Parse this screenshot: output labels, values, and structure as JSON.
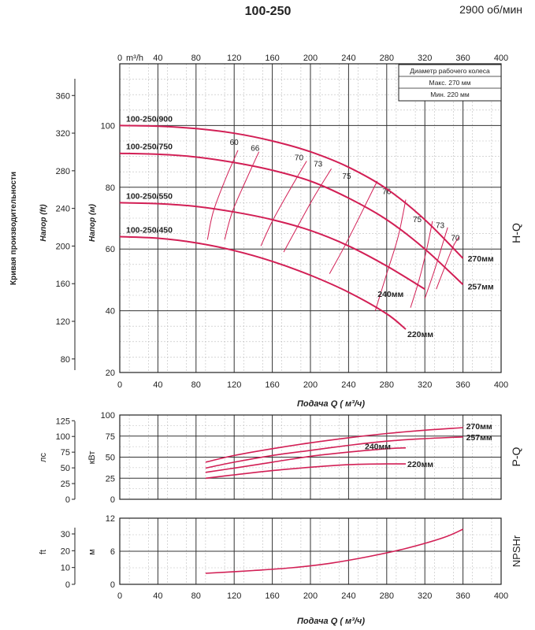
{
  "header": {
    "model": "100-250",
    "speed": "2900 об/мин"
  },
  "side_caption": "Кривая производительности",
  "colors": {
    "curve": "#d21f55",
    "grid": "#333333",
    "minor_grid": "#bdbdbd"
  },
  "chart_data": [
    {
      "type": "line",
      "panel": "H-Q",
      "panel_label": "H-Q",
      "xlabel": "Подача Q ( м³/ч)",
      "top_axis_label": "m³/h",
      "ylabel_left": "Напор (ft)",
      "ylabel_right": "Напор (м)",
      "xlim": [
        0,
        400
      ],
      "ylim": [
        20,
        120
      ],
      "x_ticks": [
        0,
        40,
        80,
        120,
        160,
        200,
        240,
        280,
        320,
        360,
        400
      ],
      "y_ticks": [
        20,
        40,
        60,
        80,
        100
      ],
      "ft_ticks": [
        80,
        120,
        160,
        200,
        240,
        280,
        320,
        360
      ],
      "legend_box": {
        "title": "Диаметр рабочего колеса",
        "max_label": "Макс. 270 мм",
        "min_label": "Мин. 220 мм"
      },
      "series": [
        {
          "name": "270мм",
          "model_label": "100-250/900",
          "x": [
            0,
            40,
            80,
            120,
            160,
            200,
            240,
            280,
            320,
            360
          ],
          "y": [
            100,
            99.8,
            99,
            97.5,
            95,
            91.5,
            86.5,
            79.5,
            69.5,
            57
          ]
        },
        {
          "name": "257мм",
          "model_label": "100-250/750",
          "x": [
            0,
            40,
            80,
            120,
            160,
            200,
            240,
            280,
            320,
            360
          ],
          "y": [
            91,
            90.7,
            89.8,
            88,
            85.5,
            82,
            76.5,
            69.5,
            60,
            48.5
          ]
        },
        {
          "name": "240мм",
          "model_label": "100-250/550",
          "x": [
            0,
            40,
            80,
            120,
            160,
            200,
            240,
            280,
            320
          ],
          "y": [
            75,
            74.7,
            73.8,
            72,
            69.5,
            66,
            61,
            54.5,
            47
          ]
        },
        {
          "name": "220мм",
          "model_label": "100-250/450",
          "x": [
            0,
            40,
            80,
            120,
            160,
            200,
            240,
            280,
            300
          ],
          "y": [
            64,
            63.5,
            62,
            59.5,
            56,
            51.5,
            46,
            39,
            34
          ]
        }
      ],
      "efficiency_curves": [
        {
          "label": "60",
          "x": [
            92,
            98,
            110,
            124
          ],
          "y": [
            63,
            72,
            82,
            92
          ]
        },
        {
          "label": "66",
          "x": [
            110,
            118,
            132,
            146
          ],
          "y": [
            63,
            72,
            82,
            91.5
          ]
        },
        {
          "label": "70",
          "x": [
            148,
            160,
            178,
            196
          ],
          "y": [
            61,
            69,
            79,
            88.5
          ]
        },
        {
          "label": "73",
          "x": [
            172,
            186,
            204,
            222
          ],
          "y": [
            59,
            67,
            77,
            86
          ]
        },
        {
          "label": "75",
          "x": [
            220,
            236,
            254,
            270
          ],
          "y": [
            52,
            61,
            72,
            82
          ]
        },
        {
          "label": "76",
          "x": [
            268,
            280,
            292,
            300
          ],
          "y": [
            40,
            52,
            64,
            76
          ]
        },
        {
          "label": "75",
          "x": [
            305,
            314,
            322,
            328
          ],
          "y": [
            41,
            50,
            60,
            69
          ]
        },
        {
          "label": "73",
          "x": [
            320,
            330,
            338,
            344
          ],
          "y": [
            44,
            53,
            61,
            67
          ]
        },
        {
          "label": "70",
          "x": [
            332,
            342,
            350,
            356
          ],
          "y": [
            47,
            55,
            61,
            64
          ]
        }
      ],
      "eff_label_positions": [
        {
          "label": "60",
          "x": 120,
          "y": 93
        },
        {
          "label": "66",
          "x": 142,
          "y": 91
        },
        {
          "label": "70",
          "x": 188,
          "y": 88
        },
        {
          "label": "73",
          "x": 208,
          "y": 86
        },
        {
          "label": "75",
          "x": 238,
          "y": 82
        },
        {
          "label": "76",
          "x": 280,
          "y": 77
        },
        {
          "label": "75",
          "x": 312,
          "y": 68
        },
        {
          "label": "73",
          "x": 336,
          "y": 66
        },
        {
          "label": "70",
          "x": 352,
          "y": 62
        }
      ]
    },
    {
      "type": "line",
      "panel": "P-Q",
      "panel_label": "P-Q",
      "ylabel_left": "лс",
      "ylabel_right": "кВт",
      "xlim": [
        0,
        400
      ],
      "ylim": [
        0,
        100
      ],
      "y_ticks": [
        0,
        25,
        50,
        75,
        100
      ],
      "hp_ticks": [
        0,
        25,
        50,
        75,
        100,
        125
      ],
      "series": [
        {
          "name": "270мм",
          "x": [
            90,
            120,
            160,
            200,
            240,
            280,
            320,
            360
          ],
          "y": [
            44,
            52,
            60,
            67,
            73,
            78,
            82,
            85
          ]
        },
        {
          "name": "257мм",
          "x": [
            90,
            120,
            160,
            200,
            240,
            280,
            320,
            360
          ],
          "y": [
            37,
            44,
            52,
            58,
            64,
            69,
            72,
            74
          ]
        },
        {
          "name": "240мм",
          "x": [
            90,
            120,
            160,
            200,
            240,
            280,
            300
          ],
          "y": [
            32,
            37,
            44,
            51,
            56,
            60,
            61
          ]
        },
        {
          "name": "220мм",
          "x": [
            90,
            120,
            160,
            200,
            240,
            280,
            300
          ],
          "y": [
            25,
            29,
            34,
            38,
            41,
            42,
            42
          ]
        }
      ]
    },
    {
      "type": "line",
      "panel": "NPSHr",
      "panel_label": "NPSHr",
      "xlabel": "Подача Q ( м³/ч)",
      "ylabel_left": "ft",
      "ylabel_right": "м",
      "xlim": [
        0,
        400
      ],
      "ylim": [
        0,
        12
      ],
      "y_ticks": [
        0,
        6,
        12
      ],
      "ft_ticks": [
        0,
        10,
        20,
        30
      ],
      "series": [
        {
          "name": "NPSHr",
          "x": [
            90,
            140,
            180,
            220,
            260,
            300,
            340,
            360
          ],
          "y": [
            2,
            2.5,
            3,
            3.8,
            5,
            6.5,
            8.5,
            10
          ]
        }
      ]
    }
  ]
}
